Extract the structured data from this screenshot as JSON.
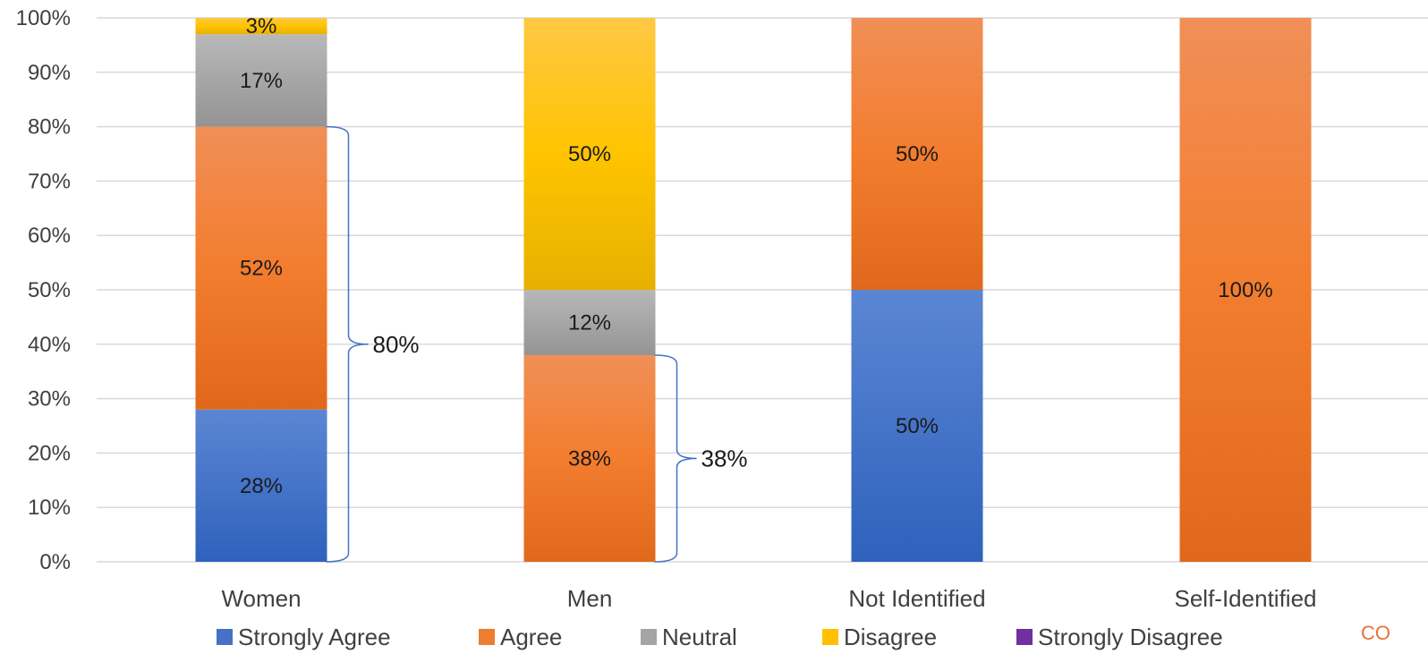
{
  "chart_data": {
    "type": "bar",
    "stacked": true,
    "percent": true,
    "categories": [
      "Women",
      "Men",
      "Not Identified",
      "Self-Identified"
    ],
    "series": [
      {
        "name": "Strongly Agree",
        "color": "#4472C4",
        "values": [
          28,
          0,
          50,
          0
        ]
      },
      {
        "name": "Agree",
        "color": "#ED7D31",
        "values": [
          52,
          38,
          50,
          100
        ]
      },
      {
        "name": "Neutral",
        "color": "#A5A5A5",
        "values": [
          17,
          12,
          0,
          0
        ]
      },
      {
        "name": "Disagree",
        "color": "#FFC000",
        "values": [
          3,
          50,
          0,
          0
        ]
      },
      {
        "name": "Strongly Disagree",
        "color": "#7030A0",
        "values": [
          0,
          0,
          0,
          0
        ]
      }
    ],
    "yticks": [
      "0%",
      "10%",
      "20%",
      "30%",
      "40%",
      "50%",
      "60%",
      "70%",
      "80%",
      "90%",
      "100%"
    ],
    "ylim": [
      0,
      100
    ],
    "grid": true,
    "legend": "bottom",
    "annotations": [
      {
        "category": "Women",
        "from": 0,
        "to": 80,
        "label": "80%"
      },
      {
        "category": "Men",
        "from": 0,
        "to": 38,
        "label": "38%"
      }
    ]
  },
  "logo_text": "CO"
}
